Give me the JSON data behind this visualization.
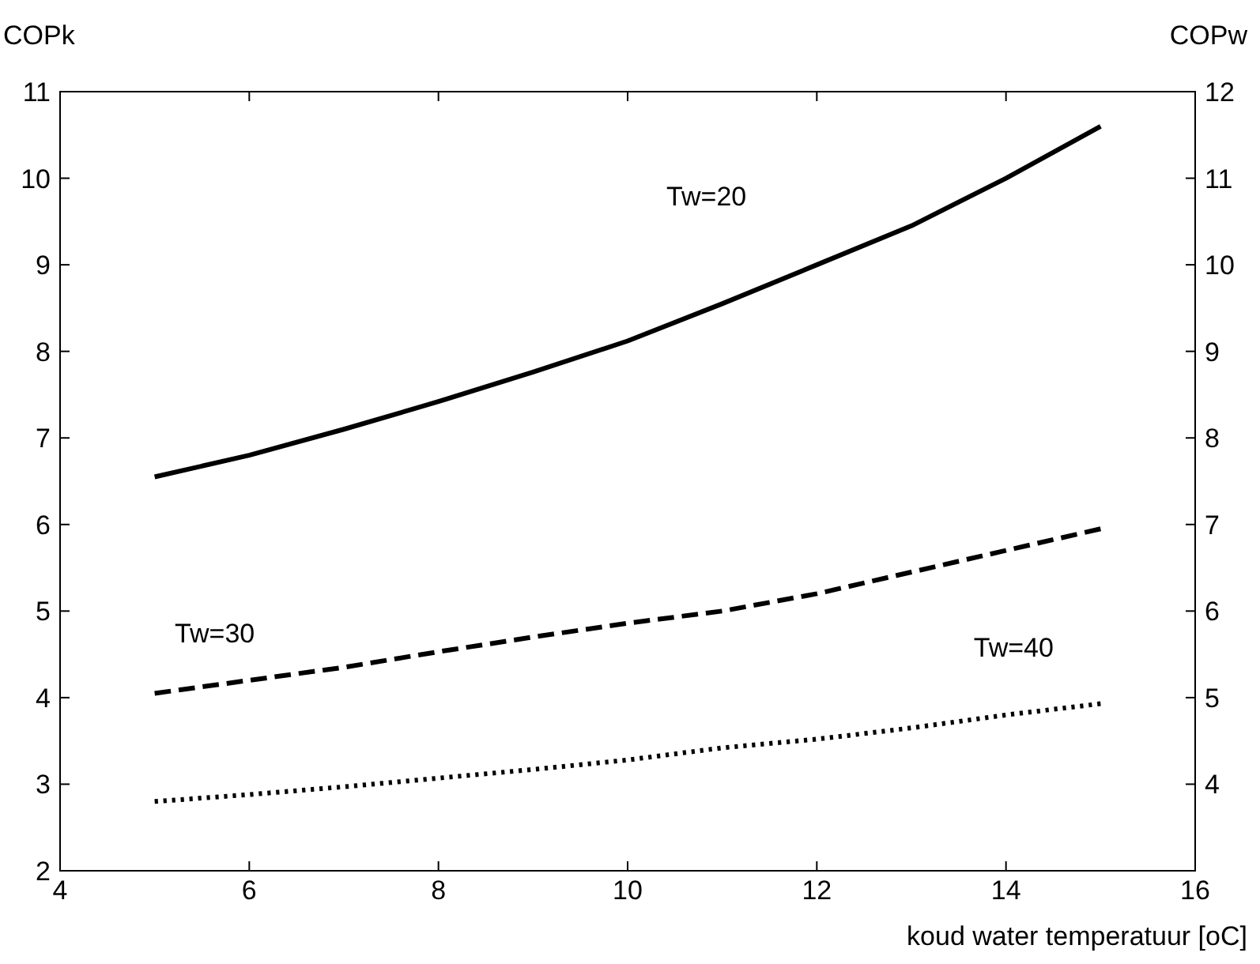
{
  "chart_data": {
    "type": "line",
    "xlabel": "koud water temperatuur [oC]",
    "ylabel": "COPk",
    "y2label": "COPw",
    "x": [
      5,
      6,
      7,
      8,
      9,
      10,
      11,
      12,
      13,
      14,
      15
    ],
    "series": [
      {
        "name": "Tw=20",
        "color": "#000000",
        "line_style": "solid",
        "values": [
          6.55,
          6.8,
          7.1,
          7.42,
          7.76,
          8.12,
          8.55,
          9.0,
          9.45,
          10.0,
          10.6
        ]
      },
      {
        "name": "Tw=30",
        "color": "#000000",
        "line_style": "dashed",
        "values": [
          4.05,
          4.2,
          4.35,
          4.53,
          4.7,
          4.86,
          5.0,
          5.2,
          5.45,
          5.7,
          5.95
        ]
      },
      {
        "name": "Tw=40",
        "color": "#000000",
        "line_style": "dotted",
        "values": [
          2.8,
          2.88,
          2.97,
          3.07,
          3.17,
          3.28,
          3.42,
          3.52,
          3.65,
          3.8,
          3.93
        ]
      }
    ],
    "xlim": [
      4,
      16
    ],
    "xticks": [
      4,
      6,
      8,
      10,
      12,
      14,
      16
    ],
    "ylim": [
      2,
      11
    ],
    "yticks": [
      2,
      3,
      4,
      5,
      6,
      7,
      8,
      9,
      10,
      11
    ],
    "y2lim": [
      3,
      12
    ],
    "y2ticks": [
      4,
      5,
      6,
      7,
      8,
      9,
      10,
      11,
      12
    ],
    "grid": false
  }
}
